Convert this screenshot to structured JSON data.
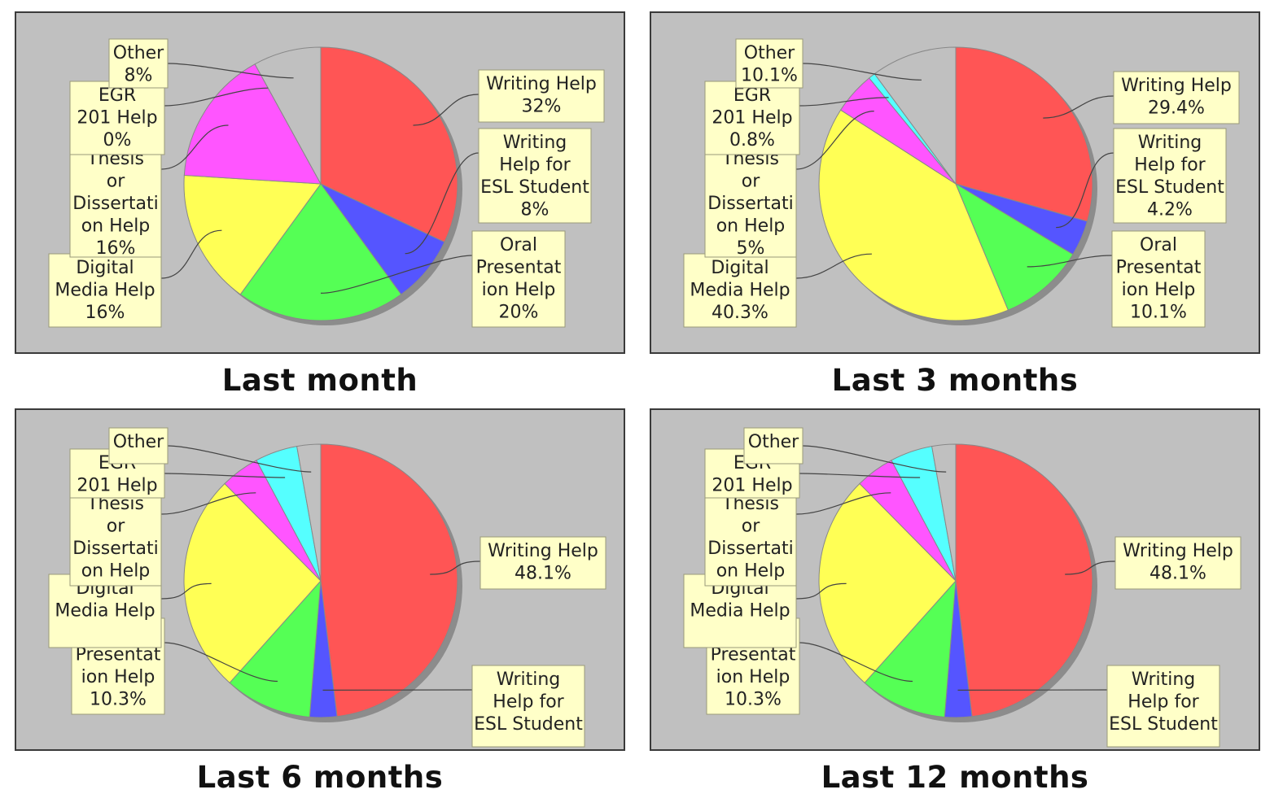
{
  "chart_data": [
    {
      "type": "pie",
      "title": "Last month",
      "labels": [
        "Writing Help",
        "Writing Help for ESL Student",
        "Oral Presentation Help",
        "Digital Media Help",
        "Thesis or Dissertation Help",
        "EGR 201 Help",
        "Other"
      ],
      "label_text": [
        "Writing Help",
        "Writing Help for ESL Student",
        "Oral Presentat ion Help",
        "Digital Media Help",
        "Thesis or Dissertati on Help",
        "EGR 201 Help",
        "Other"
      ],
      "pct_text": [
        "32%",
        "8%",
        "20%",
        "16%",
        "16%",
        "0%",
        "8%"
      ],
      "values": [
        32,
        8,
        20,
        16,
        16,
        0,
        8
      ],
      "colors": [
        "#ff5555",
        "#5555ff",
        "#55ff55",
        "#ffff55",
        "#ff55ff",
        "#55ffff",
        "#c0c0c0"
      ]
    },
    {
      "type": "pie",
      "title": "Last 3 months",
      "labels": [
        "Writing Help",
        "Writing Help for ESL Student",
        "Oral Presentation Help",
        "Digital Media Help",
        "Thesis or Dissertation Help",
        "EGR 201 Help",
        "Other"
      ],
      "label_text": [
        "Writing Help",
        "Writing Help for ESL Student",
        "Oral Presentat ion Help",
        "Digital Media Help",
        "Thesis or Dissertati on Help",
        "EGR 201 Help",
        "Other"
      ],
      "pct_text": [
        "29.4%",
        "4.2%",
        "10.1%",
        "40.3%",
        "5%",
        "0.8%",
        "10.1%"
      ],
      "values": [
        29.4,
        4.2,
        10.1,
        40.3,
        5,
        0.8,
        10.1
      ],
      "colors": [
        "#ff5555",
        "#5555ff",
        "#55ff55",
        "#ffff55",
        "#ff55ff",
        "#55ffff",
        "#c0c0c0"
      ]
    },
    {
      "type": "pie",
      "title": "Last 6 months",
      "labels": [
        "Writing Help",
        "Writing Help for ESL Student",
        "Oral Presentation Help",
        "Digital Media Help",
        "Thesis or Dissertation Help",
        "EGR 201 Help",
        "Other"
      ],
      "label_text": [
        "Writing Help",
        "Writing Help for ESL Student",
        "Oral Presentat ion Help",
        "Digital Media Help",
        "Thesis or Dissertati on Help",
        "EGR 201 Help",
        "Other"
      ],
      "pct_text": [
        "48.1%",
        "",
        "10.3%",
        "",
        "",
        "",
        ""
      ],
      "values": [
        48.1,
        3.2,
        10.3,
        26,
        4.6,
        5,
        2.8
      ],
      "colors": [
        "#ff5555",
        "#5555ff",
        "#55ff55",
        "#ffff55",
        "#ff55ff",
        "#55ffff",
        "#c0c0c0"
      ]
    },
    {
      "type": "pie",
      "title": "Last 12 months",
      "labels": [
        "Writing Help",
        "Writing Help for ESL Student",
        "Oral Presentation Help",
        "Digital Media Help",
        "Thesis or Dissertation Help",
        "EGR 201 Help",
        "Other"
      ],
      "label_text": [
        "Writing Help",
        "Writing Help for ESL Student",
        "Oral Presentat ion Help",
        "Digital Media Help",
        "Thesis or Dissertati on Help",
        "EGR 201 Help",
        "Other"
      ],
      "pct_text": [
        "48.1%",
        "",
        "10.3%",
        "",
        "",
        "",
        ""
      ],
      "values": [
        48.1,
        3.2,
        10.3,
        26,
        4.6,
        5,
        2.8
      ],
      "colors": [
        "#ff5555",
        "#5555ff",
        "#55ff55",
        "#ffff55",
        "#ff55ff",
        "#55ffff",
        "#c0c0c0"
      ]
    }
  ]
}
